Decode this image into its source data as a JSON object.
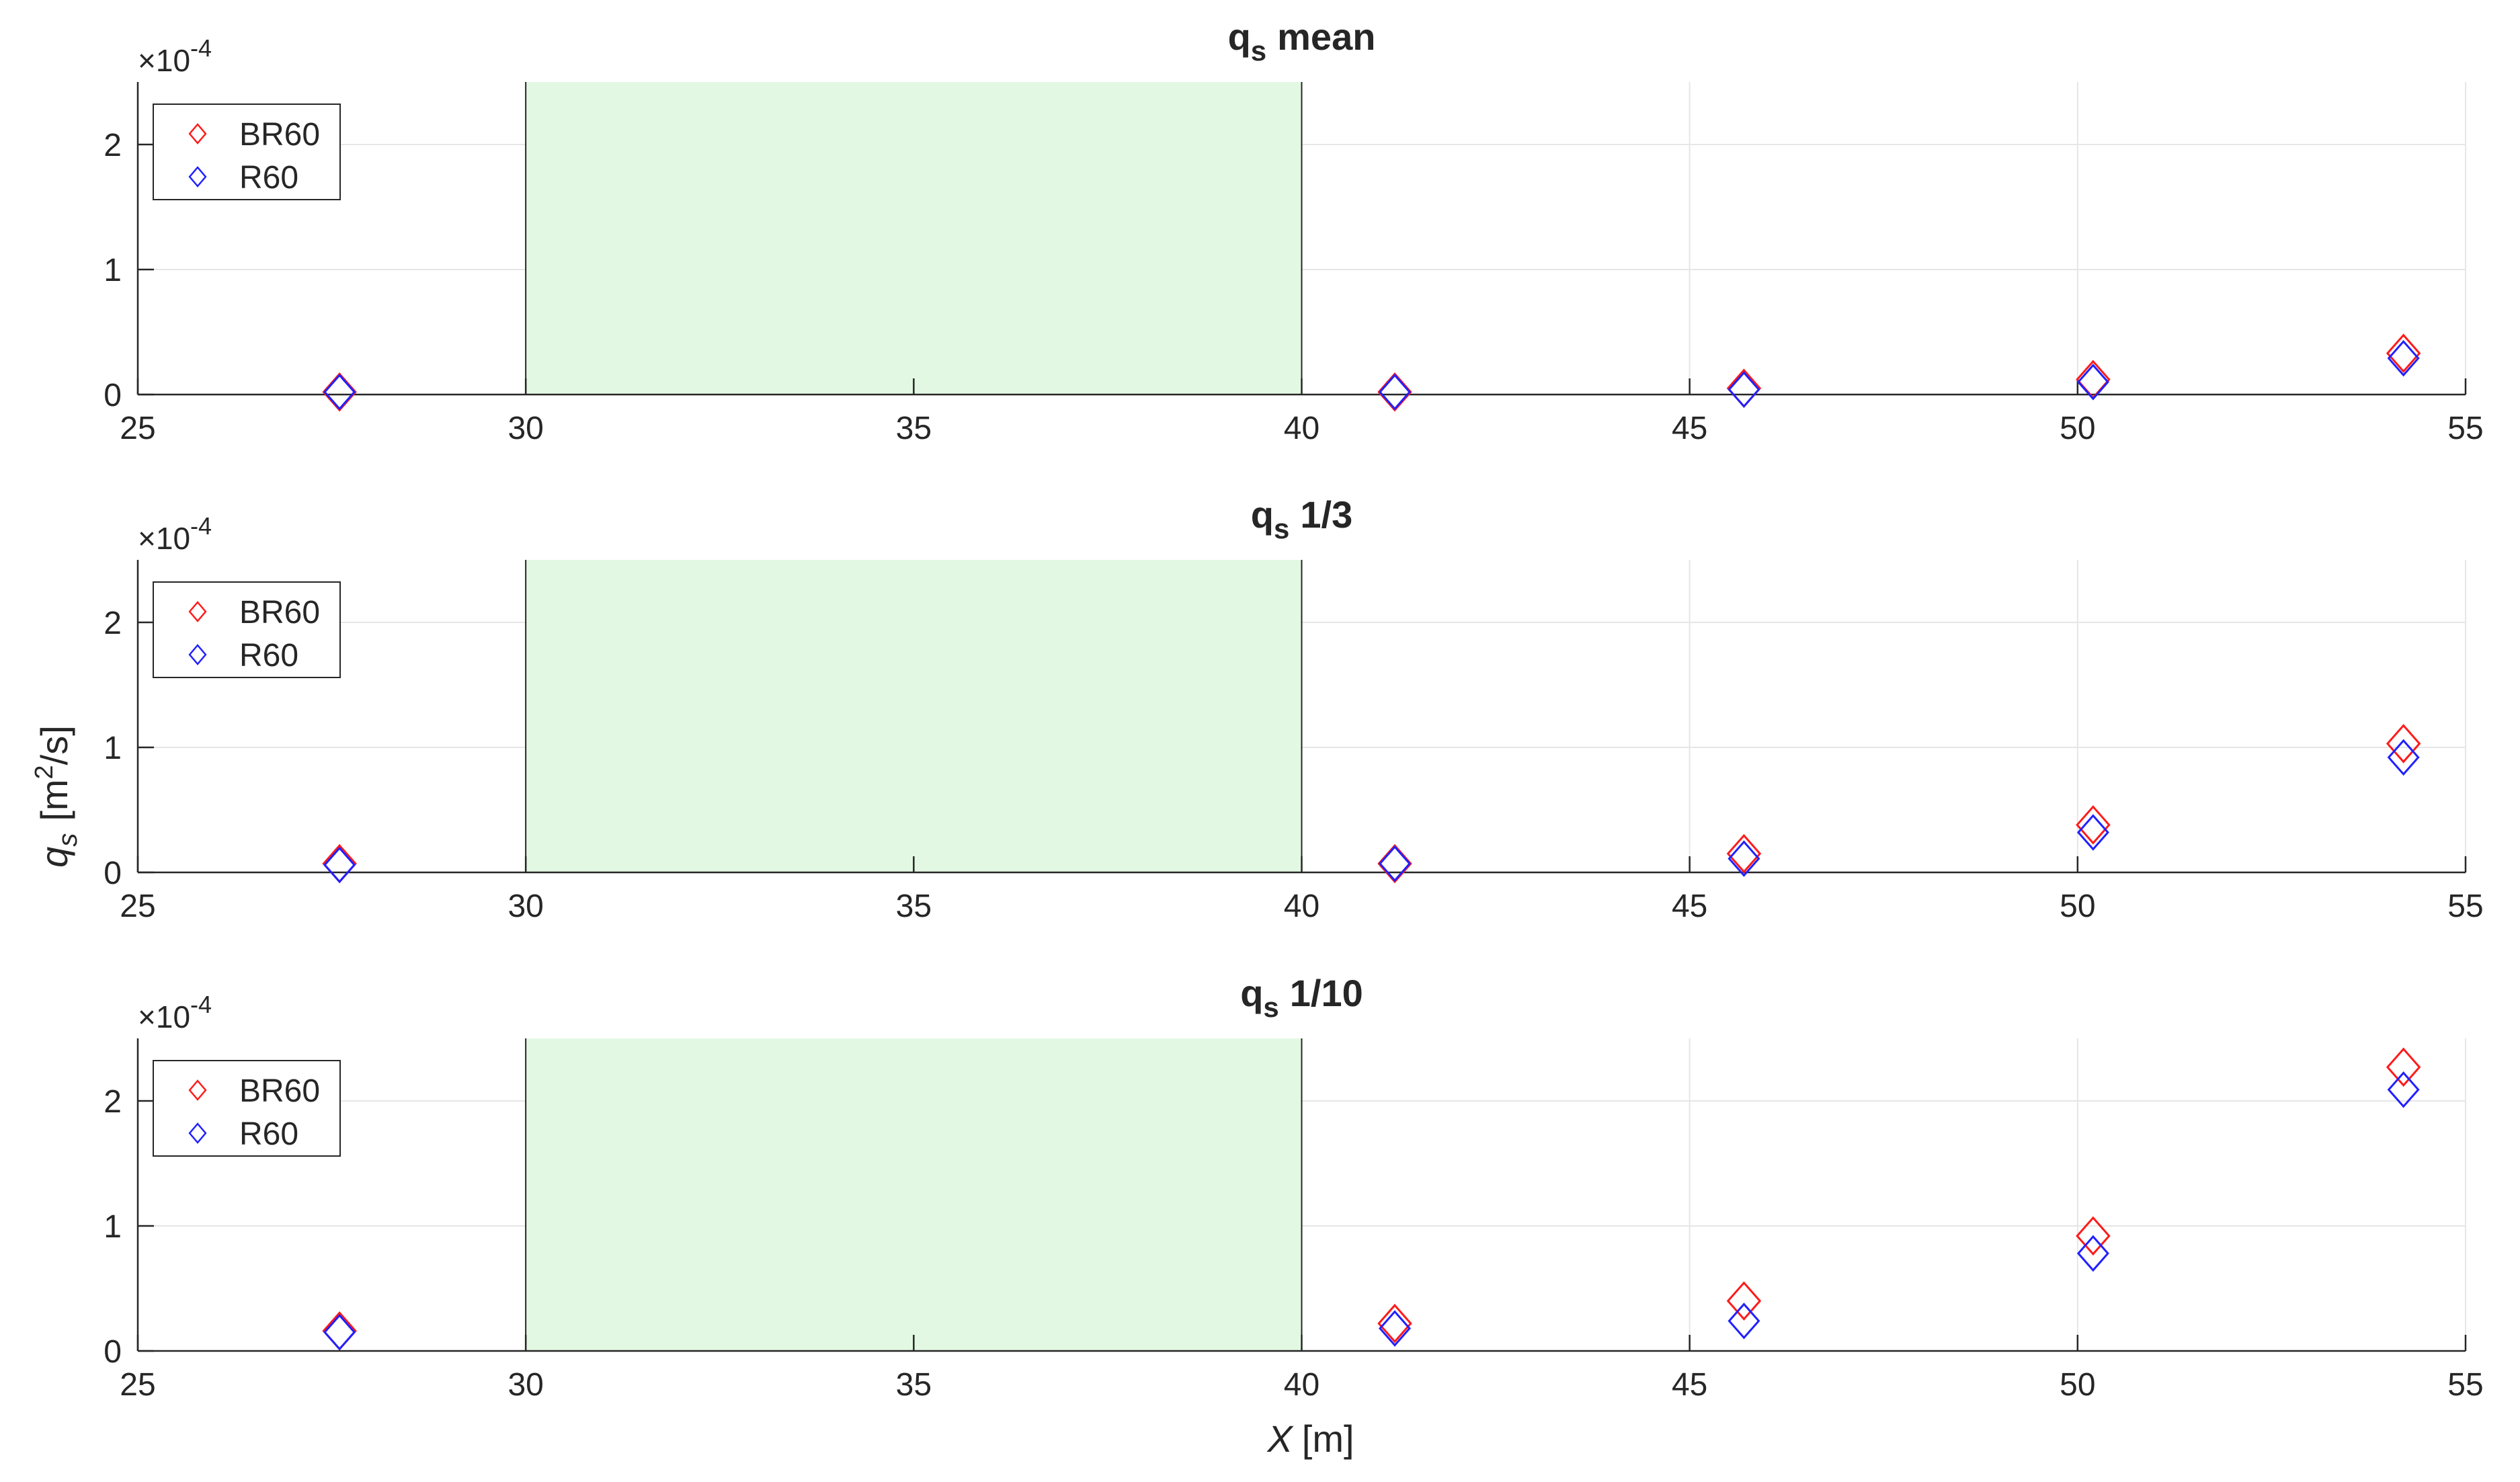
{
  "colors": {
    "series_BR60": "#ff1a1a",
    "series_R60": "#2020ff",
    "highlight_fill": "#e3f8e3",
    "axis": "#262626",
    "grid": "#e6e6e6"
  },
  "figure": {
    "xlabel": "X",
    "xlabel_unit": "[m]",
    "ylabel": "q",
    "ylabel_sub": "s",
    "ylabel_unit_open": "[m",
    "ylabel_unit_sup": "2",
    "ylabel_unit_close": "/s]"
  },
  "chart_data": [
    {
      "type": "scatter",
      "title": "q",
      "title_sub": "s",
      "title_suffix": "mean",
      "exponent_base": "×10",
      "exponent_power": "-4",
      "x_ticks": [
        25,
        30,
        35,
        40,
        45,
        50,
        55
      ],
      "y_ticks": [
        0,
        1,
        2
      ],
      "xlim": [
        25,
        55
      ],
      "ylim": [
        0,
        2.5
      ],
      "y_scale": 0.0001,
      "grid": true,
      "highlight_x_range": [
        30,
        40
      ],
      "legend_position": "top-left",
      "series": [
        {
          "name": "BR60",
          "marker": "diamond",
          "x": [
            27.6,
            41.2,
            45.7,
            50.2,
            54.2
          ],
          "y": [
            0.02,
            0.02,
            0.05,
            0.12,
            0.33
          ]
        },
        {
          "name": "R60",
          "marker": "diamond",
          "x": [
            27.6,
            41.2,
            45.7,
            50.2,
            54.2
          ],
          "y": [
            0.02,
            0.02,
            0.04,
            0.1,
            0.29
          ]
        }
      ]
    },
    {
      "type": "scatter",
      "title": "q",
      "title_sub": "s",
      "title_suffix": "1/3",
      "exponent_base": "×10",
      "exponent_power": "-4",
      "x_ticks": [
        25,
        30,
        35,
        40,
        45,
        50,
        55
      ],
      "y_ticks": [
        0,
        1,
        2
      ],
      "xlim": [
        25,
        55
      ],
      "ylim": [
        0,
        2.5
      ],
      "y_scale": 0.0001,
      "grid": true,
      "highlight_x_range": [
        30,
        40
      ],
      "legend_position": "top-left",
      "series": [
        {
          "name": "BR60",
          "marker": "diamond",
          "x": [
            27.6,
            41.2,
            45.7,
            50.2,
            54.2
          ],
          "y": [
            0.07,
            0.07,
            0.15,
            0.38,
            1.03
          ]
        },
        {
          "name": "R60",
          "marker": "diamond",
          "x": [
            27.6,
            41.2,
            45.7,
            50.2,
            54.2
          ],
          "y": [
            0.06,
            0.07,
            0.11,
            0.32,
            0.92
          ]
        }
      ]
    },
    {
      "type": "scatter",
      "title": "q",
      "title_sub": "s",
      "title_suffix": "1/10",
      "exponent_base": "×10",
      "exponent_power": "-4",
      "x_ticks": [
        25,
        30,
        35,
        40,
        45,
        50,
        55
      ],
      "y_ticks": [
        0,
        1,
        2
      ],
      "xlim": [
        25,
        55
      ],
      "ylim": [
        0,
        2.5
      ],
      "y_scale": 0.0001,
      "grid": true,
      "highlight_x_range": [
        30,
        40
      ],
      "legend_position": "top-left",
      "series": [
        {
          "name": "BR60",
          "marker": "diamond",
          "x": [
            27.6,
            41.2,
            45.7,
            50.2,
            54.2
          ],
          "y": [
            0.16,
            0.22,
            0.4,
            0.92,
            2.27
          ]
        },
        {
          "name": "R60",
          "marker": "diamond",
          "x": [
            27.6,
            41.2,
            45.7,
            50.2,
            54.2
          ],
          "y": [
            0.15,
            0.18,
            0.24,
            0.78,
            2.09
          ]
        }
      ]
    }
  ]
}
